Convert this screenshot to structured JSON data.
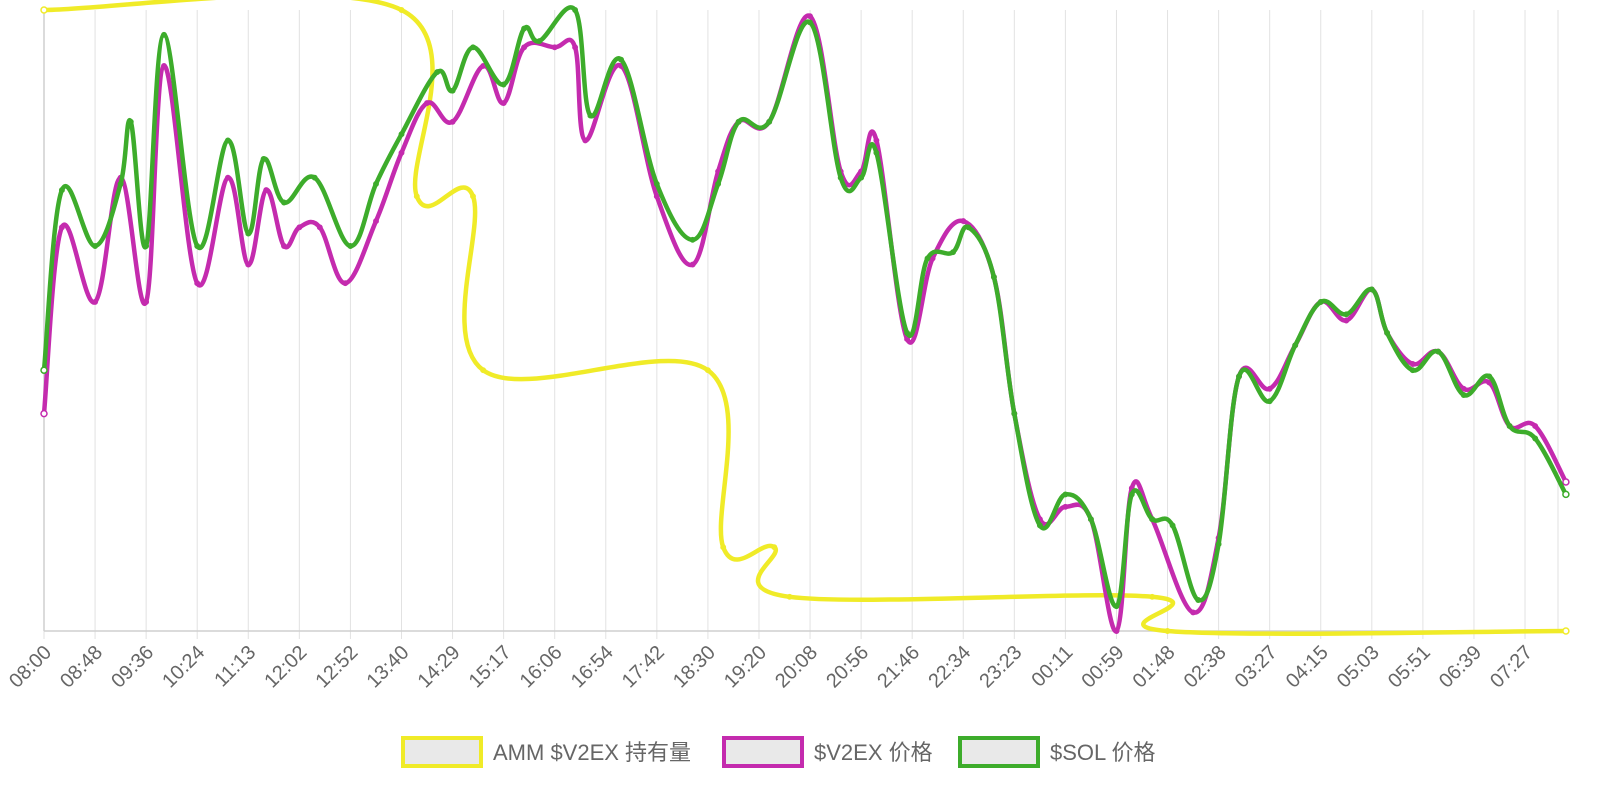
{
  "chart_data": {
    "type": "line",
    "title": "",
    "xlabel": "",
    "ylabel": "",
    "x_tick_labels": [
      "08:00",
      "08:48",
      "09:36",
      "10:24",
      "11:13",
      "12:02",
      "12:52",
      "13:40",
      "14:29",
      "15:17",
      "16:06",
      "16:54",
      "17:42",
      "18:30",
      "19:20",
      "20:08",
      "20:56",
      "21:46",
      "22:34",
      "23:23",
      "00:11",
      "00:59",
      "01:48",
      "02:38",
      "03:27",
      "04:15",
      "05:03",
      "05:51",
      "06:39",
      "07:27"
    ],
    "y_axis": {
      "ticks_shown": false,
      "scale": "relative (0 = bottom of plot, 1 = top)",
      "ylim": [
        0,
        1
      ]
    },
    "grid": {
      "vertical": true,
      "horizontal": false
    },
    "legend": {
      "position": "bottom-center"
    },
    "series": [
      {
        "name": "AMM $V2EX 持有量",
        "color": "#f0eb28",
        "step": true,
        "values": [
          [
            0,
            1
          ],
          [
            7,
            1
          ],
          [
            7.3,
            0.7
          ],
          [
            8.4,
            0.7
          ],
          [
            8.6,
            0.42
          ],
          [
            13,
            0.42
          ],
          [
            13.3,
            0.135
          ],
          [
            14.3,
            0.135
          ],
          [
            14.6,
            0.055
          ],
          [
            21.7,
            0.055
          ],
          [
            22,
            0
          ],
          [
            29.8,
            0
          ]
        ]
      },
      {
        "name": "$V2EX 价格",
        "color": "#c42bae",
        "values": [
          [
            0,
            0.35
          ],
          [
            0.35,
            0.65
          ],
          [
            1,
            0.53
          ],
          [
            1.5,
            0.73
          ],
          [
            2,
            0.53
          ],
          [
            2.35,
            0.91
          ],
          [
            3,
            0.56
          ],
          [
            3.6,
            0.73
          ],
          [
            4,
            0.59
          ],
          [
            4.35,
            0.71
          ],
          [
            4.7,
            0.62
          ],
          [
            5,
            0.65
          ],
          [
            5.4,
            0.65
          ],
          [
            5.9,
            0.56
          ],
          [
            6.5,
            0.66
          ],
          [
            7,
            0.77
          ],
          [
            7.5,
            0.85
          ],
          [
            8,
            0.82
          ],
          [
            8.6,
            0.91
          ],
          [
            9,
            0.85
          ],
          [
            9.4,
            0.94
          ],
          [
            10,
            0.94
          ],
          [
            10.4,
            0.94
          ],
          [
            10.6,
            0.79
          ],
          [
            11.3,
            0.91
          ],
          [
            12,
            0.7
          ],
          [
            12.7,
            0.59
          ],
          [
            13.2,
            0.74
          ],
          [
            13.6,
            0.82
          ],
          [
            14.2,
            0.82
          ],
          [
            15,
            0.99
          ],
          [
            15.6,
            0.74
          ],
          [
            16,
            0.74
          ],
          [
            16.3,
            0.79
          ],
          [
            16.9,
            0.47
          ],
          [
            17.4,
            0.6
          ],
          [
            18,
            0.66
          ],
          [
            18.6,
            0.57
          ],
          [
            19,
            0.35
          ],
          [
            19.5,
            0.18
          ],
          [
            20,
            0.2
          ],
          [
            20.5,
            0.18
          ],
          [
            21,
            0
          ],
          [
            21.3,
            0.23
          ],
          [
            21.7,
            0.18
          ],
          [
            22.5,
            0.03
          ],
          [
            23,
            0.15
          ],
          [
            23.4,
            0.41
          ],
          [
            24,
            0.39
          ],
          [
            24.5,
            0.46
          ],
          [
            25,
            0.53
          ],
          [
            25.5,
            0.5
          ],
          [
            26,
            0.55
          ],
          [
            26.3,
            0.48
          ],
          [
            26.8,
            0.43
          ],
          [
            27.3,
            0.45
          ],
          [
            27.8,
            0.39
          ],
          [
            28.3,
            0.4
          ],
          [
            28.7,
            0.33
          ],
          [
            29.2,
            0.33
          ],
          [
            29.8,
            0.24
          ]
        ]
      },
      {
        "name": "$SOL 价格",
        "color": "#3dac2b",
        "values": [
          [
            0,
            0.42
          ],
          [
            0.35,
            0.71
          ],
          [
            1,
            0.62
          ],
          [
            1.5,
            0.72
          ],
          [
            1.7,
            0.82
          ],
          [
            2,
            0.62
          ],
          [
            2.35,
            0.96
          ],
          [
            3,
            0.62
          ],
          [
            3.6,
            0.79
          ],
          [
            4,
            0.64
          ],
          [
            4.3,
            0.76
          ],
          [
            4.7,
            0.69
          ],
          [
            5.3,
            0.73
          ],
          [
            6,
            0.62
          ],
          [
            6.5,
            0.72
          ],
          [
            7,
            0.8
          ],
          [
            7.7,
            0.9
          ],
          [
            8,
            0.87
          ],
          [
            8.4,
            0.94
          ],
          [
            9,
            0.88
          ],
          [
            9.4,
            0.97
          ],
          [
            9.7,
            0.95
          ],
          [
            10.4,
            1
          ],
          [
            10.7,
            0.83
          ],
          [
            11.3,
            0.92
          ],
          [
            12,
            0.72
          ],
          [
            12.7,
            0.63
          ],
          [
            13.2,
            0.72
          ],
          [
            13.6,
            0.82
          ],
          [
            14.2,
            0.82
          ],
          [
            15,
            0.98
          ],
          [
            15.6,
            0.73
          ],
          [
            16,
            0.73
          ],
          [
            16.3,
            0.77
          ],
          [
            16.9,
            0.48
          ],
          [
            17.3,
            0.6
          ],
          [
            17.8,
            0.61
          ],
          [
            18.1,
            0.65
          ],
          [
            18.6,
            0.57
          ],
          [
            19,
            0.35
          ],
          [
            19.5,
            0.17
          ],
          [
            20,
            0.22
          ],
          [
            20.5,
            0.18
          ],
          [
            21,
            0.04
          ],
          [
            21.3,
            0.22
          ],
          [
            21.7,
            0.18
          ],
          [
            22.1,
            0.17
          ],
          [
            22.6,
            0.05
          ],
          [
            23,
            0.14
          ],
          [
            23.4,
            0.41
          ],
          [
            24,
            0.37
          ],
          [
            24.5,
            0.46
          ],
          [
            25,
            0.53
          ],
          [
            25.5,
            0.51
          ],
          [
            26,
            0.55
          ],
          [
            26.3,
            0.48
          ],
          [
            26.8,
            0.42
          ],
          [
            27.3,
            0.45
          ],
          [
            27.8,
            0.38
          ],
          [
            28.3,
            0.41
          ],
          [
            28.7,
            0.33
          ],
          [
            29.2,
            0.31
          ],
          [
            29.8,
            0.22
          ]
        ]
      }
    ]
  }
}
